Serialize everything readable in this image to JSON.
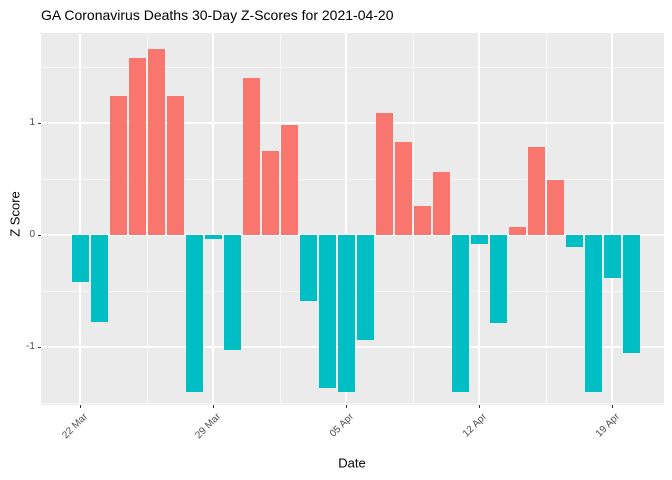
{
  "page": {
    "title": "GA Coronavirus Deaths 30-Day Z-Scores for 2021-04-20"
  },
  "chart_data": {
    "type": "bar",
    "title": "GA Coronavirus Deaths 30-Day Z-Scores for 2021-04-20",
    "xlabel": "Date",
    "ylabel": "Z Score",
    "ylim": [
      -1.51,
      1.8
    ],
    "grid": true,
    "legend": false,
    "panel_bg": "#EBEBEB",
    "grid_color": "#FFFFFF",
    "tick_label_color": "#4D4D4D",
    "bar_colors": {
      "positive": "#F8766D",
      "negative": "#00BFC4"
    },
    "x": [
      "2021-03-22",
      "2021-03-23",
      "2021-03-24",
      "2021-03-25",
      "2021-03-26",
      "2021-03-27",
      "2021-03-28",
      "2021-03-29",
      "2021-03-30",
      "2021-03-31",
      "2021-04-01",
      "2021-04-02",
      "2021-04-03",
      "2021-04-04",
      "2021-04-05",
      "2021-04-06",
      "2021-04-07",
      "2021-04-08",
      "2021-04-09",
      "2021-04-10",
      "2021-04-11",
      "2021-04-12",
      "2021-04-13",
      "2021-04-14",
      "2021-04-15",
      "2021-04-16",
      "2021-04-17",
      "2021-04-18",
      "2021-04-19",
      "2021-04-20"
    ],
    "values": [
      -0.42,
      -0.78,
      1.24,
      1.58,
      1.66,
      1.24,
      -1.4,
      -0.04,
      -1.03,
      1.4,
      0.75,
      0.98,
      -0.59,
      -1.37,
      -1.4,
      -0.94,
      1.09,
      0.83,
      0.26,
      0.56,
      -1.4,
      -0.08,
      -0.79,
      0.07,
      0.79,
      0.49,
      -0.11,
      -1.4,
      -0.38,
      -1.05
    ],
    "x_ticks": [
      {
        "label": "22 Mar",
        "day": 0
      },
      {
        "label": "29 Mar",
        "day": 7
      },
      {
        "label": "05 Apr",
        "day": 14
      },
      {
        "label": "12 Apr",
        "day": 21
      },
      {
        "label": "19 Apr",
        "day": 28
      }
    ],
    "x_minor_days": [
      3.5,
      10.5,
      17.5,
      24.5
    ],
    "y_ticks": [
      {
        "label": "1",
        "z": 1
      },
      {
        "label": "0",
        "z": 0
      },
      {
        "label": "-1",
        "z": -1
      }
    ],
    "y_minor": [
      1.5,
      0.5,
      -0.5,
      -1.5
    ]
  }
}
